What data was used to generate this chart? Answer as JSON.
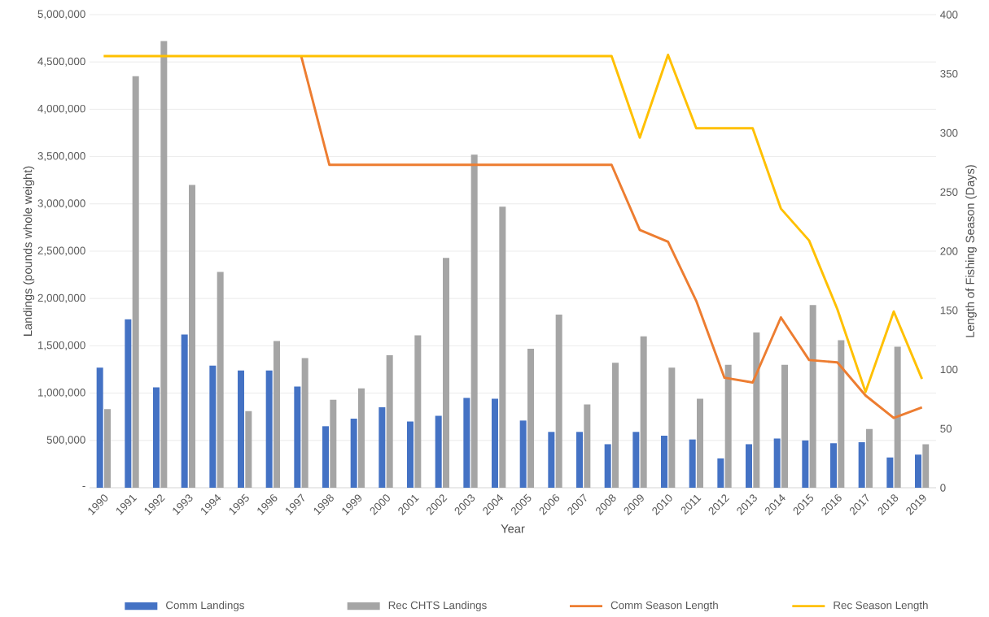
{
  "chart_data": {
    "type": "bar",
    "xlabel": "Year",
    "ylabel": "Landings (pounds whole weight)",
    "y2label": "Length of Fishing Season (Days)",
    "categories": [
      "1990",
      "1991",
      "1992",
      "1993",
      "1994",
      "1995",
      "1996",
      "1997",
      "1998",
      "1999",
      "2000",
      "2001",
      "2002",
      "2003",
      "2004",
      "2005",
      "2006",
      "2007",
      "2008",
      "2009",
      "2010",
      "2011",
      "2012",
      "2013",
      "2014",
      "2015",
      "2016",
      "2017",
      "2018",
      "2019"
    ],
    "series": [
      {
        "name": "Comm Landings",
        "color": "#4472c4",
        "values": [
          1270000,
          1780000,
          1060000,
          1620000,
          1290000,
          1240000,
          1240000,
          1070000,
          650000,
          730000,
          850000,
          700000,
          760000,
          950000,
          940000,
          710000,
          590000,
          590000,
          460000,
          590000,
          550000,
          510000,
          310000,
          460000,
          520000,
          500000,
          470000,
          480000,
          320000,
          350000
        ]
      },
      {
        "name": "Rec CHTS Landings",
        "color": "#a5a5a5",
        "values": [
          830000,
          4350000,
          4720000,
          3200000,
          2280000,
          810000,
          1550000,
          1370000,
          930000,
          1050000,
          1400000,
          1610000,
          2430000,
          3520000,
          2970000,
          1470000,
          1830000,
          880000,
          1320000,
          1600000,
          1270000,
          940000,
          1300000,
          1640000,
          1300000,
          1930000,
          1560000,
          620000,
          1490000,
          460000
        ]
      },
      {
        "name": "Comm Season Length",
        "type": "line",
        "axis": "y2",
        "color": "#ed7d31",
        "values": [
          null,
          null,
          null,
          null,
          null,
          null,
          null,
          365,
          273,
          273,
          273,
          273,
          273,
          273,
          273,
          273,
          273,
          273,
          273,
          218,
          208,
          158,
          93,
          89,
          144,
          108,
          106,
          78,
          59,
          68
        ]
      },
      {
        "name": "Rec Season Length",
        "type": "line",
        "axis": "y2",
        "color": "#ffc000",
        "values": [
          365,
          365,
          365,
          365,
          365,
          365,
          365,
          365,
          365,
          365,
          365,
          365,
          365,
          365,
          365,
          365,
          365,
          365,
          365,
          296,
          366,
          304,
          304,
          304,
          236,
          209,
          151,
          81,
          149,
          92
        ]
      }
    ],
    "ylim": [
      0,
      5000000
    ],
    "yticks": [
      {
        "value": 0,
        "label": "-"
      },
      {
        "value": 500000,
        "label": "500,000"
      },
      {
        "value": 1000000,
        "label": "1,000,000"
      },
      {
        "value": 1500000,
        "label": "1,500,000"
      },
      {
        "value": 2000000,
        "label": "2,000,000"
      },
      {
        "value": 2500000,
        "label": "2,500,000"
      },
      {
        "value": 3000000,
        "label": "3,000,000"
      },
      {
        "value": 3500000,
        "label": "3,500,000"
      },
      {
        "value": 4000000,
        "label": "4,000,000"
      },
      {
        "value": 4500000,
        "label": "4,500,000"
      },
      {
        "value": 5000000,
        "label": "5,000,000"
      }
    ],
    "y2lim": [
      0,
      400
    ],
    "y2ticks": [
      0,
      50,
      100,
      150,
      200,
      250,
      300,
      350,
      400
    ],
    "grid": "y",
    "legend": "bottom"
  }
}
